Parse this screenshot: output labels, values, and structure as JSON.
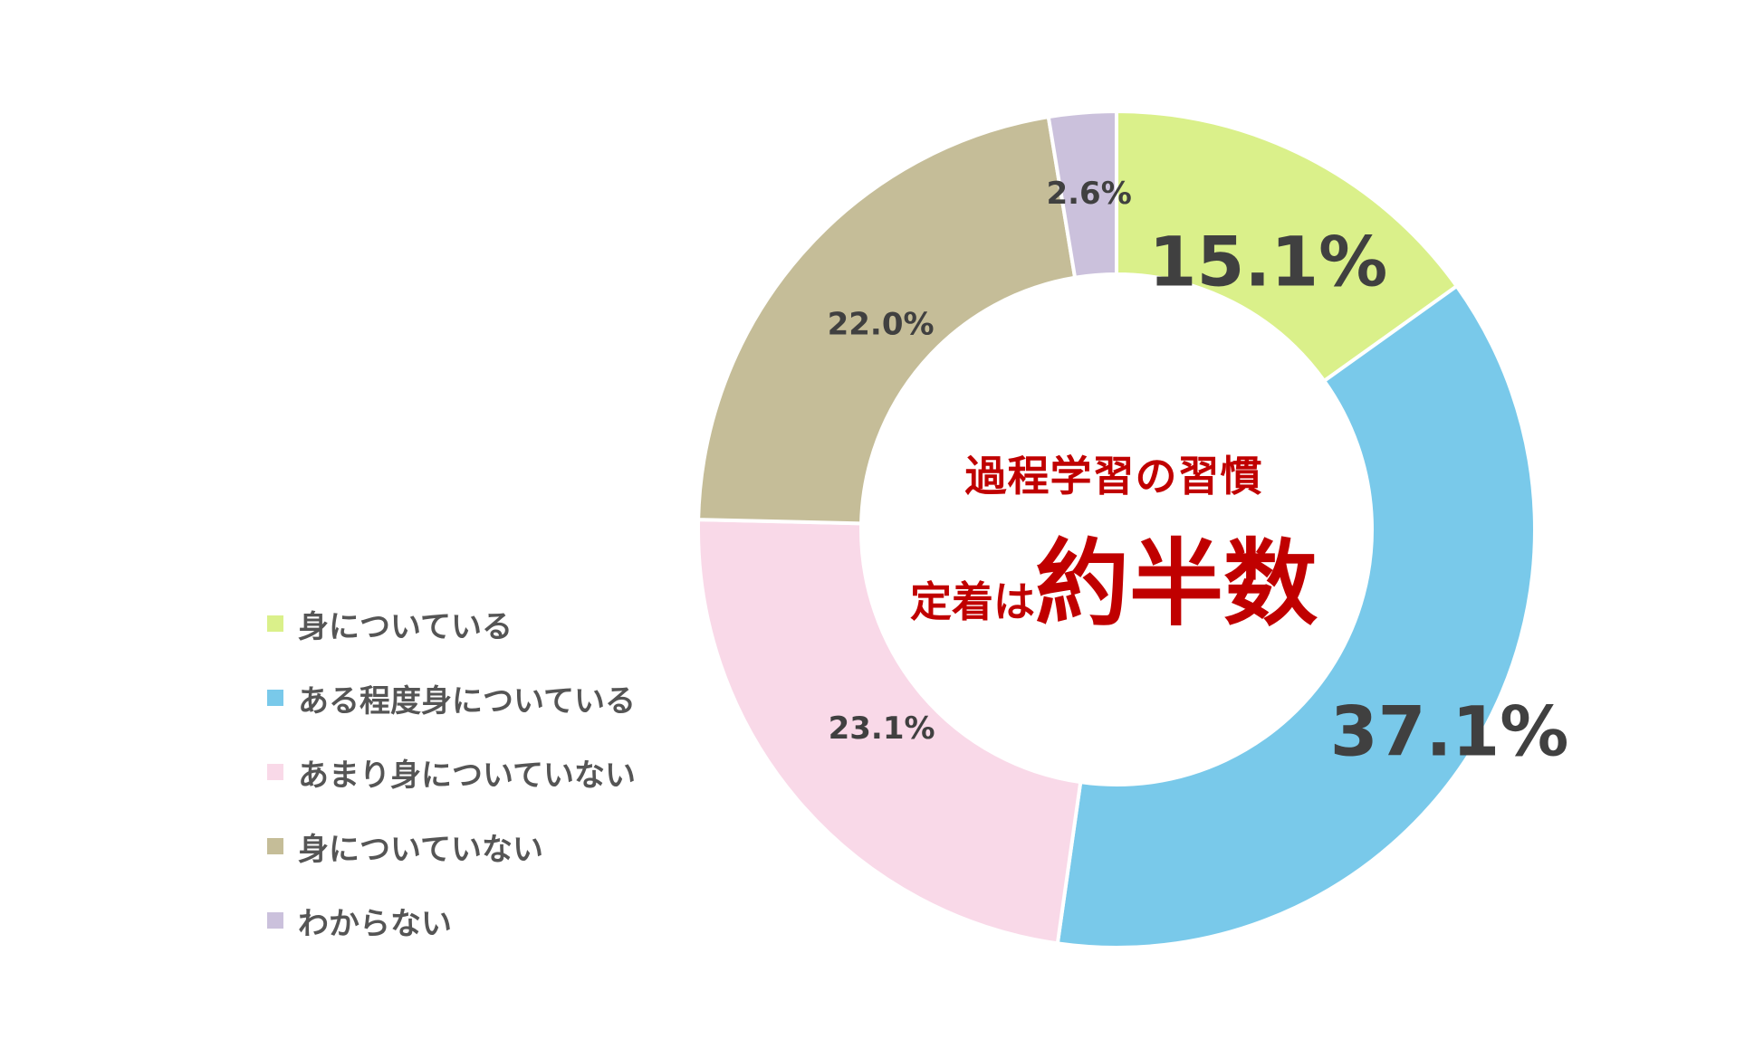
{
  "chart_data": {
    "type": "pie",
    "categories": [
      "身についている",
      "ある程度身についている",
      "あまり身についていない",
      "身についていない",
      "わからない"
    ],
    "values": [
      15.1,
      37.1,
      23.1,
      22.0,
      2.6
    ],
    "value_labels": [
      "15.1%",
      "37.1%",
      "23.1%",
      "22.0%",
      "2.6%"
    ],
    "colors": [
      "#daf08a",
      "#79c9ea",
      "#f9d9e8",
      "#c5bd98",
      "#cbc1dc"
    ],
    "legend_position": "bottom-left",
    "donut": true
  },
  "center_text": {
    "line1": "過程学習の習慣",
    "line2_prefix": "定着は",
    "line2_emphasis": "約半数",
    "color": "#c00000"
  },
  "legend": {
    "items": [
      {
        "label": "身についている",
        "color": "#daf08a"
      },
      {
        "label": "ある程度身についている",
        "color": "#79c9ea"
      },
      {
        "label": "あまり身についていない",
        "color": "#f9d9e8"
      },
      {
        "label": "身についていない",
        "color": "#c5bd98"
      },
      {
        "label": "わからない",
        "color": "#cbc1dc"
      }
    ]
  }
}
